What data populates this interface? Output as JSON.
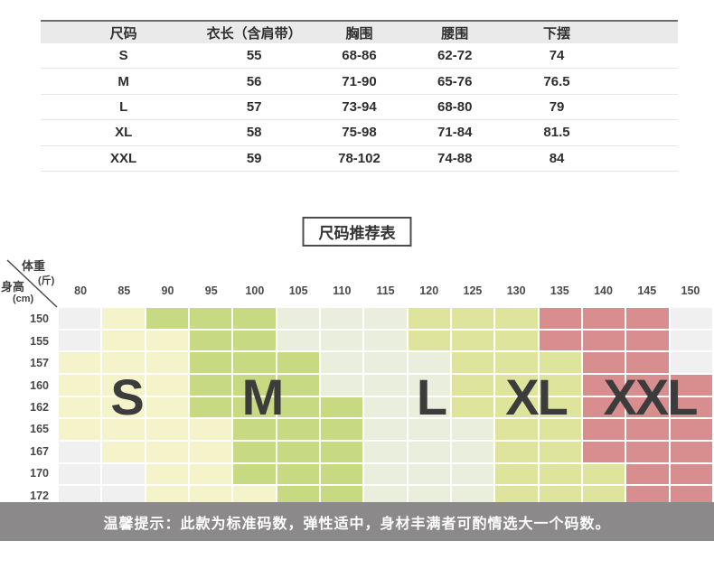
{
  "size_table": {
    "header_bg": "#eaeaea",
    "columns": [
      "尺码",
      "衣长（含肩带）",
      "胸围",
      "腰围",
      "下摆"
    ],
    "rows": [
      [
        "S",
        "55",
        "68-86",
        "62-72",
        "74"
      ],
      [
        "M",
        "56",
        "71-90",
        "65-76",
        "76.5"
      ],
      [
        "L",
        "57",
        "73-94",
        "68-80",
        "79"
      ],
      [
        "XL",
        "58",
        "75-98",
        "71-84",
        "81.5"
      ],
      [
        "XXL",
        "59",
        "78-102",
        "74-88",
        "84"
      ]
    ]
  },
  "recommendation": {
    "title": "尺码推荐表",
    "weight_axis_label": "体重",
    "weight_axis_unit": "(斤)",
    "height_axis_label": "身高",
    "height_axis_unit": "(cm)",
    "size_labels": [
      "S",
      "M",
      "L",
      "XL",
      "XXL"
    ],
    "colors": {
      "none": "#f0f0f0",
      "S": "#f4f3ca",
      "M": "#c8da81",
      "L": "#eaeedd",
      "XL": "#dfe49c",
      "XXL": "#d88e8f"
    }
  },
  "tip": {
    "text": "温馨提示：此款为标准码数，弹性适中，身材丰满者可酌情选大一个码数。"
  },
  "chart_data": [
    {
      "type": "table",
      "title": "尺码表",
      "columns": [
        "尺码",
        "衣长（含肩带）",
        "胸围",
        "腰围",
        "下摆"
      ],
      "rows": [
        [
          "S",
          55,
          "68-86",
          "62-72",
          74
        ],
        [
          "M",
          56,
          "71-90",
          "65-76",
          76.5
        ],
        [
          "L",
          57,
          "73-94",
          "68-80",
          79
        ],
        [
          "XL",
          58,
          "75-98",
          "71-84",
          81.5
        ],
        [
          "XXL",
          59,
          "78-102",
          "74-88",
          84
        ]
      ]
    },
    {
      "type": "heatmap",
      "title": "尺码推荐表",
      "xlabel": "体重(斤)",
      "ylabel": "身高(cm)",
      "x": [
        80,
        85,
        90,
        95,
        100,
        105,
        110,
        115,
        120,
        125,
        130,
        135,
        140,
        145,
        150
      ],
      "y": [
        150,
        155,
        157,
        160,
        162,
        165,
        167,
        170,
        172
      ],
      "legend": [
        "S",
        "M",
        "L",
        "XL",
        "XXL"
      ],
      "values": [
        [
          "",
          "S",
          "M",
          "M",
          "M",
          "L",
          "L",
          "L",
          "XL",
          "XL",
          "XL",
          "XXL",
          "XXL",
          "XXL",
          ""
        ],
        [
          "",
          "S",
          "S",
          "M",
          "M",
          "L",
          "L",
          "L",
          "XL",
          "XL",
          "XL",
          "XXL",
          "XXL",
          "XXL",
          ""
        ],
        [
          "S",
          "S",
          "S",
          "M",
          "M",
          "M",
          "L",
          "L",
          "L",
          "XL",
          "XL",
          "XL",
          "XXL",
          "XXL",
          ""
        ],
        [
          "S",
          "S",
          "S",
          "M",
          "M",
          "M",
          "L",
          "L",
          "L",
          "XL",
          "XL",
          "XL",
          "XXL",
          "XXL",
          "XXL"
        ],
        [
          "S",
          "S",
          "S",
          "M",
          "M",
          "M",
          "M",
          "L",
          "L",
          "XL",
          "XL",
          "XL",
          "XXL",
          "XXL",
          "XXL"
        ],
        [
          "S",
          "S",
          "S",
          "S",
          "M",
          "M",
          "M",
          "L",
          "L",
          "L",
          "XL",
          "XL",
          "XXL",
          "XXL",
          "XXL"
        ],
        [
          "",
          "S",
          "S",
          "S",
          "M",
          "M",
          "M",
          "L",
          "L",
          "L",
          "XL",
          "XL",
          "XXL",
          "XXL",
          "XXL"
        ],
        [
          "",
          "",
          "S",
          "S",
          "M",
          "M",
          "M",
          "L",
          "L",
          "L",
          "XL",
          "XL",
          "XL",
          "XXL",
          "XXL"
        ],
        [
          "",
          "",
          "S",
          "S",
          "S",
          "M",
          "M",
          "L",
          "L",
          "L",
          "XL",
          "XL",
          "XL",
          "XXL",
          "XXL"
        ]
      ]
    }
  ]
}
